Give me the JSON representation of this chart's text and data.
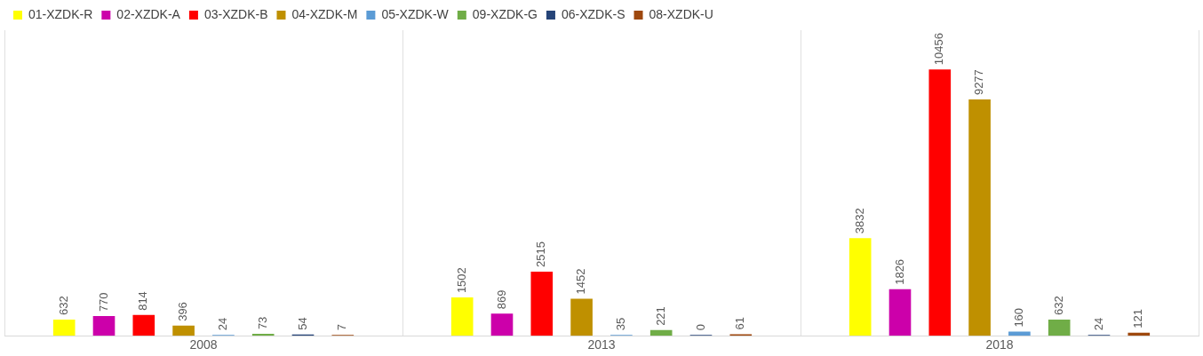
{
  "chart_data": {
    "type": "bar",
    "categories": [
      "2008",
      "2013",
      "2018"
    ],
    "series": [
      {
        "name": "01-XZDK-R",
        "color": "#ffff00",
        "values": [
          632,
          1502,
          3832
        ]
      },
      {
        "name": "02-XZDK-A",
        "color": "#cc00aa",
        "values": [
          770,
          869,
          1826
        ]
      },
      {
        "name": "03-XZDK-B",
        "color": "#ff0000",
        "values": [
          814,
          2515,
          10456
        ]
      },
      {
        "name": "04-XZDK-M",
        "color": "#bf9000",
        "values": [
          396,
          1452,
          9277
        ]
      },
      {
        "name": "05-XZDK-W",
        "color": "#5b9bd5",
        "values": [
          24,
          35,
          160
        ]
      },
      {
        "name": "09-XZDK-G",
        "color": "#70ad47",
        "values": [
          73,
          221,
          632
        ]
      },
      {
        "name": "06-XZDK-S",
        "color": "#264478",
        "values": [
          54,
          0,
          24
        ]
      },
      {
        "name": "08-XZDK-U",
        "color": "#9e480e",
        "values": [
          7,
          61,
          121
        ]
      }
    ],
    "data_labels": true,
    "grid": "x",
    "legend": "top left",
    "tick_labels": "x"
  }
}
